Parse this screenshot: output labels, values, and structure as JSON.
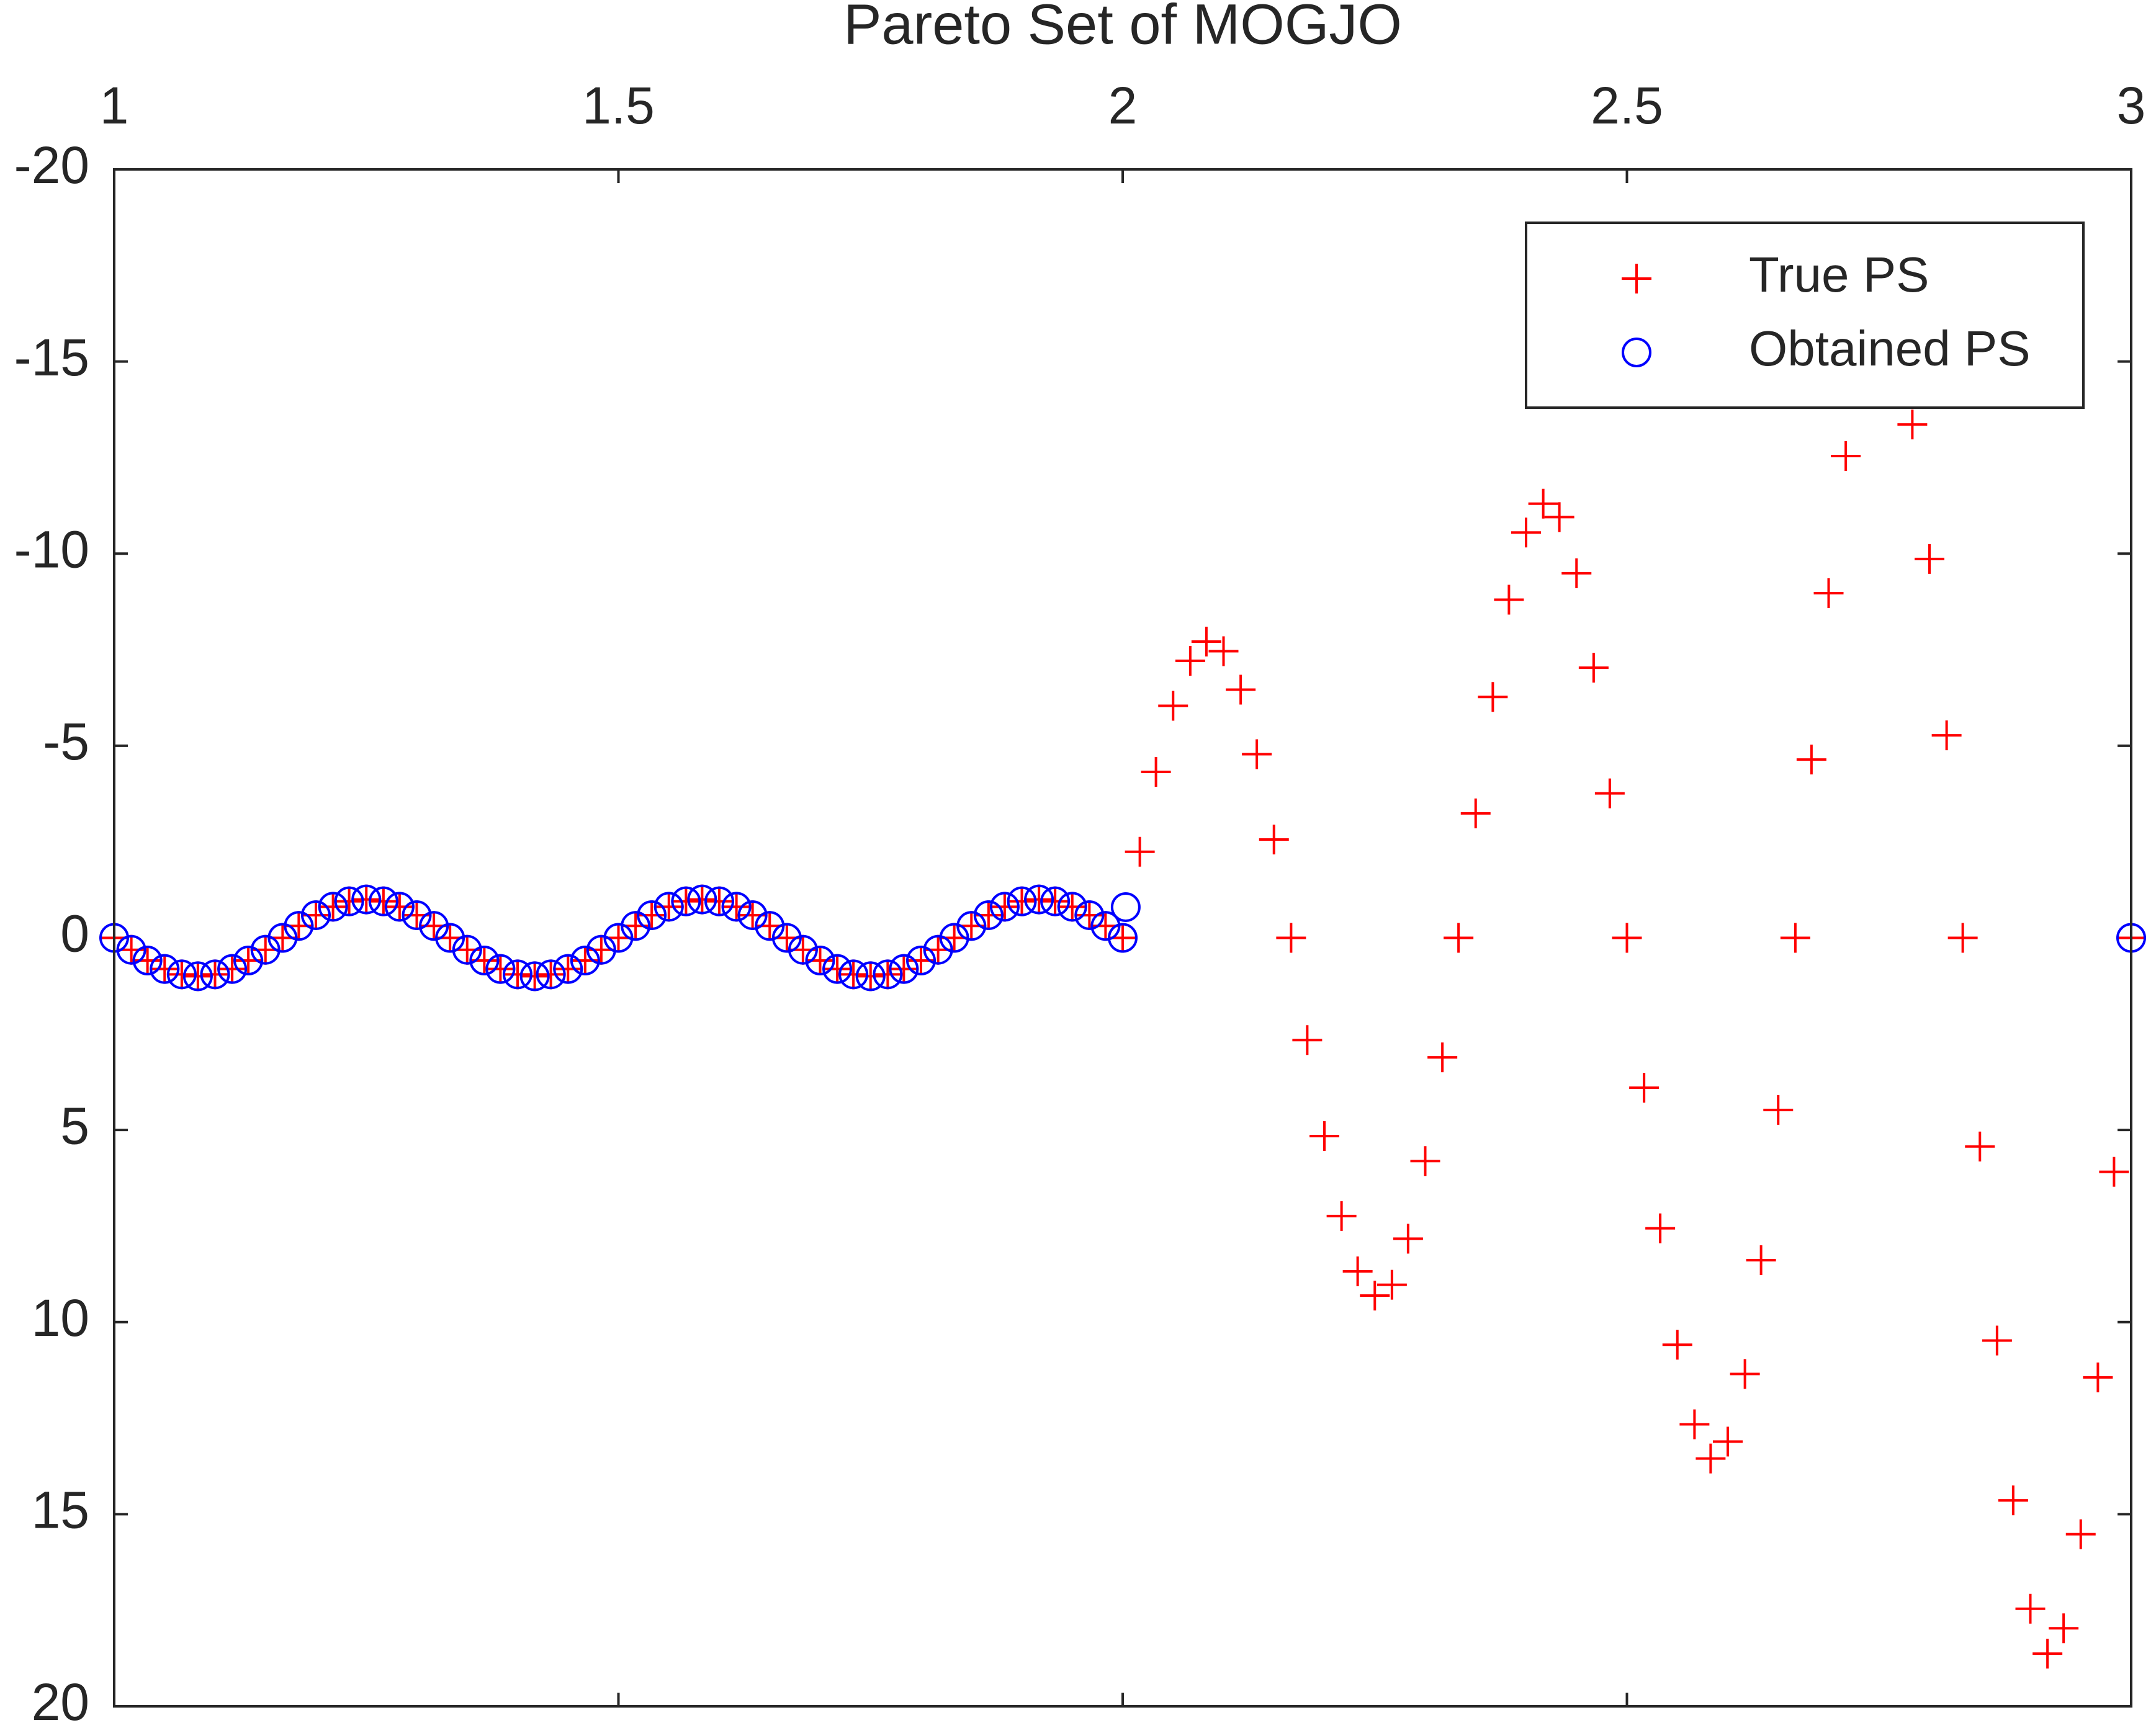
{
  "chart_data": {
    "type": "scatter",
    "title": "Pareto Set of MOGJO",
    "xlim": [
      1,
      3
    ],
    "xticks": [
      1,
      1.5,
      2,
      2.5,
      3
    ],
    "x_axis_location": "top",
    "ylim": [
      -20,
      20
    ],
    "yticks": [
      -20,
      -15,
      -10,
      -5,
      0,
      5,
      10,
      15,
      20
    ],
    "y_reversed": true,
    "grid": false,
    "legend_location": "northeast",
    "series": [
      {
        "name": "True PS",
        "color": "#ff0000",
        "marker": "plus",
        "x": [
          1,
          1.017,
          1.033,
          1.05,
          1.067,
          1.083,
          1.1,
          1.117,
          1.133,
          1.15,
          1.167,
          1.183,
          1.2,
          1.217,
          1.233,
          1.25,
          1.267,
          1.283,
          1.3,
          1.317,
          1.333,
          1.35,
          1.367,
          1.383,
          1.4,
          1.417,
          1.433,
          1.45,
          1.467,
          1.483,
          1.5,
          1.517,
          1.533,
          1.55,
          1.567,
          1.583,
          1.6,
          1.617,
          1.633,
          1.65,
          1.667,
          1.683,
          1.7,
          1.717,
          1.733,
          1.75,
          1.767,
          1.783,
          1.8,
          1.817,
          1.833,
          1.85,
          1.867,
          1.883,
          1.9,
          1.917,
          1.933,
          1.95,
          1.967,
          1.983,
          2,
          2.017,
          2.033,
          2.05,
          2.067,
          2.083,
          2.1,
          2.117,
          2.133,
          2.15,
          2.167,
          2.183,
          2.2,
          2.217,
          2.233,
          2.25,
          2.267,
          2.283,
          2.3,
          2.317,
          2.333,
          2.35,
          2.367,
          2.383,
          2.4,
          2.417,
          2.433,
          2.45,
          2.467,
          2.483,
          2.5,
          2.517,
          2.533,
          2.55,
          2.567,
          2.583,
          2.6,
          2.617,
          2.633,
          2.65,
          2.667,
          2.683,
          2.7,
          2.717,
          2.733,
          2.75,
          2.767,
          2.783,
          2.8,
          2.817,
          2.833,
          2.85,
          2.867,
          2.883,
          2.9,
          2.917,
          2.933,
          2.95,
          2.967,
          2.983,
          3
        ],
        "values": [
          0,
          0.31,
          0.59,
          0.81,
          0.95,
          1,
          0.95,
          0.81,
          0.59,
          0.31,
          0,
          -0.31,
          -0.59,
          -0.81,
          -0.95,
          -1,
          -0.95,
          -0.81,
          -0.59,
          -0.31,
          0,
          0.31,
          0.59,
          0.81,
          0.95,
          1,
          0.95,
          0.81,
          0.59,
          0.31,
          0,
          -0.31,
          -0.59,
          -0.81,
          -0.95,
          -1,
          -0.95,
          -0.81,
          -0.59,
          -0.31,
          0,
          0.31,
          0.59,
          0.81,
          0.95,
          1,
          0.95,
          0.81,
          0.59,
          0.31,
          0,
          -0.31,
          -0.59,
          -0.81,
          -0.95,
          -1,
          -0.95,
          -0.81,
          -0.59,
          -0.31,
          0,
          -2.24,
          -4.32,
          -6.04,
          -7.21,
          -7.71,
          -7.46,
          -6.46,
          -4.78,
          -2.56,
          0,
          2.66,
          5.16,
          7.24,
          8.68,
          9.31,
          9.03,
          7.83,
          5.81,
          3.11,
          0,
          -3.24,
          -6.27,
          -8.8,
          -10.55,
          -11.3,
          -10.95,
          -9.49,
          -7.03,
          -3.76,
          0,
          3.9,
          7.56,
          10.59,
          12.66,
          13.55,
          13.11,
          11.35,
          8.39,
          4.48,
          0,
          -4.64,
          -8.97,
          -12.54,
          -14.98,
          -16,
          -15.46,
          -13.36,
          -9.86,
          -5.27,
          0,
          5.43,
          10.48,
          14.64,
          17.46,
          18.63,
          17.97,
          15.52,
          11.44,
          6.09,
          0
        ]
      },
      {
        "name": "Obtained PS",
        "color": "#0000ff",
        "marker": "circle",
        "x": [
          1,
          1.017,
          1.033,
          1.05,
          1.067,
          1.083,
          1.1,
          1.117,
          1.133,
          1.15,
          1.167,
          1.183,
          1.2,
          1.217,
          1.233,
          1.25,
          1.267,
          1.283,
          1.3,
          1.317,
          1.333,
          1.35,
          1.367,
          1.383,
          1.4,
          1.417,
          1.433,
          1.45,
          1.467,
          1.483,
          1.5,
          1.517,
          1.533,
          1.55,
          1.567,
          1.583,
          1.6,
          1.617,
          1.633,
          1.65,
          1.667,
          1.683,
          1.7,
          1.717,
          1.733,
          1.75,
          1.767,
          1.783,
          1.8,
          1.817,
          1.833,
          1.85,
          1.867,
          1.883,
          1.9,
          1.917,
          1.933,
          1.95,
          1.967,
          1.983,
          2,
          2.003,
          3
        ],
        "values": [
          0,
          0.31,
          0.59,
          0.81,
          0.95,
          1,
          0.95,
          0.81,
          0.59,
          0.31,
          0,
          -0.31,
          -0.59,
          -0.81,
          -0.95,
          -1,
          -0.95,
          -0.81,
          -0.59,
          -0.31,
          0,
          0.31,
          0.59,
          0.81,
          0.95,
          1,
          0.95,
          0.81,
          0.59,
          0.31,
          0,
          -0.31,
          -0.59,
          -0.81,
          -0.95,
          -1,
          -0.95,
          -0.81,
          -0.59,
          -0.31,
          0,
          0.31,
          0.59,
          0.81,
          0.95,
          1,
          0.95,
          0.81,
          0.59,
          0.31,
          0,
          -0.31,
          -0.59,
          -0.81,
          -0.95,
          -1,
          -0.95,
          -0.81,
          -0.59,
          -0.31,
          0,
          -0.8,
          0
        ]
      }
    ]
  }
}
